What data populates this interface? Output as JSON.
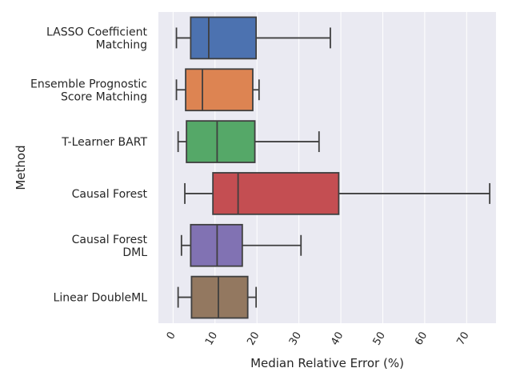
{
  "chart_data": {
    "type": "box",
    "orientation": "horizontal",
    "xlabel": "Median Relative Error (%)",
    "ylabel": "Method",
    "xlim": [
      -3.5,
      77
    ],
    "xticks": [
      0,
      10,
      20,
      30,
      40,
      50,
      60,
      70
    ],
    "grid": true,
    "colors": {
      "background": "#eaeaf2",
      "grid": "#ffffff",
      "box_edge": "#3f3f3f"
    },
    "categories": [
      {
        "label": "LASSO Coefficient\nMatching",
        "whisker_low": 0.8,
        "q1": 4.2,
        "median": 8.5,
        "q3": 19.8,
        "whisker_high": 37.5,
        "color": "#4c72b0"
      },
      {
        "label": "Ensemble Prognostic\nScore Matching",
        "whisker_low": 0.8,
        "q1": 3.0,
        "median": 7.0,
        "q3": 19.0,
        "whisker_high": 20.5,
        "color": "#dd8452"
      },
      {
        "label": "T-Learner BART",
        "whisker_low": 1.2,
        "q1": 3.2,
        "median": 10.5,
        "q3": 19.5,
        "whisker_high": 34.8,
        "color": "#55a868"
      },
      {
        "label": "Causal Forest",
        "whisker_low": 2.8,
        "q1": 9.5,
        "median": 15.5,
        "q3": 39.5,
        "whisker_high": 75.5,
        "color": "#c44e52"
      },
      {
        "label": "Causal Forest\nDML",
        "whisker_low": 2.0,
        "q1": 4.2,
        "median": 10.5,
        "q3": 16.5,
        "whisker_high": 30.5,
        "color": "#8172b3"
      },
      {
        "label": "Linear DoubleML",
        "whisker_low": 1.2,
        "q1": 4.4,
        "median": 10.8,
        "q3": 17.8,
        "whisker_high": 19.8,
        "color": "#937860"
      }
    ]
  }
}
